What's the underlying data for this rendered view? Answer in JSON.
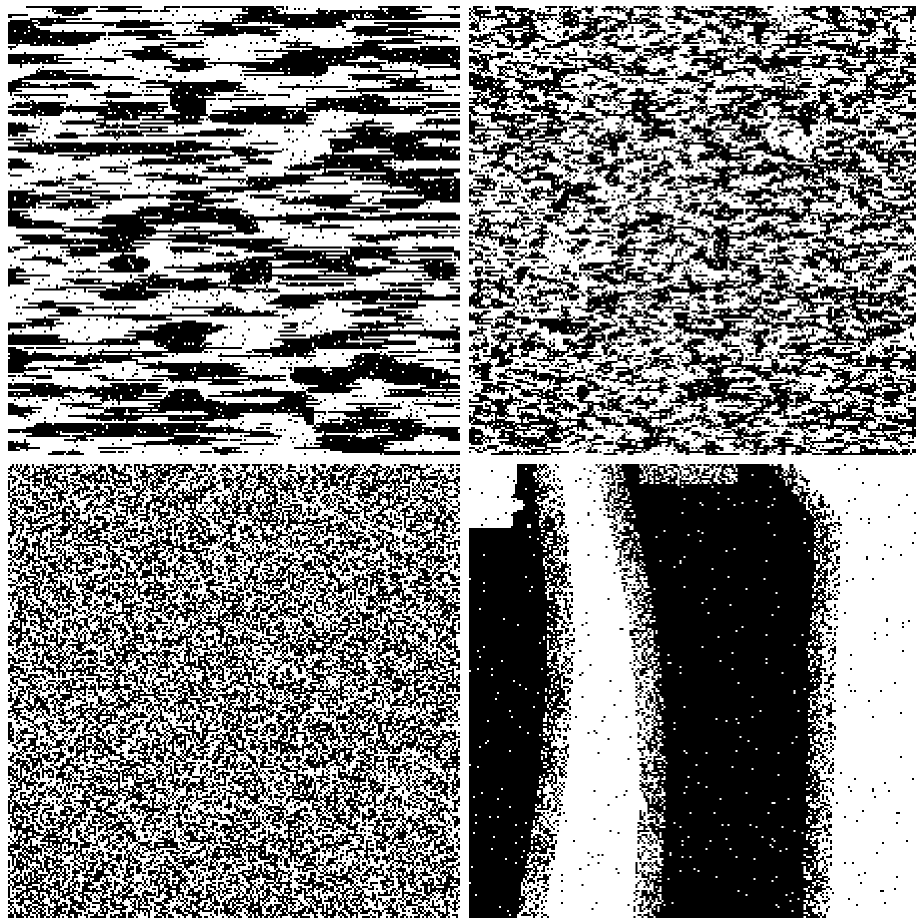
{
  "colors": {
    "ink": "#000000",
    "paper": "#ffffff",
    "gutter": "#ffffff"
  },
  "panels": [
    {
      "id": "panel-tl",
      "pattern": "horizontal-streaks"
    },
    {
      "id": "panel-tr",
      "pattern": "fine-dashed-texture"
    },
    {
      "id": "panel-bl",
      "pattern": "salt-and-pepper-noise"
    },
    {
      "id": "panel-br",
      "pattern": "large-blobs-with-vertical-bands"
    }
  ]
}
